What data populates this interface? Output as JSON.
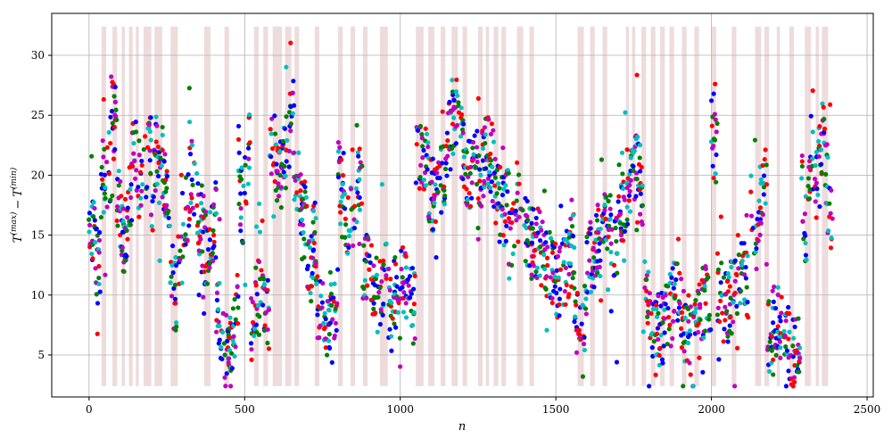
{
  "chart_data": {
    "type": "scatter",
    "xlabel": "n",
    "ylabel_main": "T",
    "ylabel_sup1": "(max)",
    "ylabel_minus": "−",
    "ylabel_sup2": "(min)",
    "xlim": [
      -120,
      2520
    ],
    "ylim": [
      1.5,
      33.5
    ],
    "xticks": [
      0,
      500,
      1000,
      1500,
      2000,
      2500
    ],
    "yticks": [
      5,
      10,
      15,
      20,
      25,
      30
    ],
    "grid": true,
    "series_colors": [
      "#0000ff",
      "#ff0000",
      "#008000",
      "#00bfbf",
      "#bf00bf"
    ],
    "band_color": "#e8d0d2",
    "band_range": [
      2.4,
      32.4
    ],
    "bands": [
      [
        40,
        55
      ],
      [
        75,
        90
      ],
      [
        105,
        115
      ],
      [
        128,
        140
      ],
      [
        150,
        160
      ],
      [
        175,
        200
      ],
      [
        210,
        235
      ],
      [
        262,
        285
      ],
      [
        370,
        390
      ],
      [
        435,
        450
      ],
      [
        530,
        545
      ],
      [
        560,
        575
      ],
      [
        590,
        620
      ],
      [
        630,
        650
      ],
      [
        660,
        675
      ],
      [
        725,
        740
      ],
      [
        800,
        815
      ],
      [
        840,
        855
      ],
      [
        880,
        895
      ],
      [
        935,
        960
      ],
      [
        1050,
        1075
      ],
      [
        1090,
        1110
      ],
      [
        1130,
        1145
      ],
      [
        1165,
        1185
      ],
      [
        1200,
        1215
      ],
      [
        1250,
        1265
      ],
      [
        1275,
        1285
      ],
      [
        1300,
        1315
      ],
      [
        1325,
        1340
      ],
      [
        1375,
        1395
      ],
      [
        1415,
        1430
      ],
      [
        1570,
        1590
      ],
      [
        1610,
        1625
      ],
      [
        1650,
        1665
      ],
      [
        1725,
        1735
      ],
      [
        1745,
        1755
      ],
      [
        1775,
        1790
      ],
      [
        1805,
        1820
      ],
      [
        1835,
        1850
      ],
      [
        1865,
        1880
      ],
      [
        1905,
        1920
      ],
      [
        1945,
        1960
      ],
      [
        2000,
        2015
      ],
      [
        2065,
        2080
      ],
      [
        2140,
        2160
      ],
      [
        2170,
        2185
      ],
      [
        2210,
        2220
      ],
      [
        2250,
        2265
      ],
      [
        2300,
        2320
      ],
      [
        2335,
        2345
      ],
      [
        2355,
        2375
      ]
    ],
    "segments": [
      {
        "x": [
          0,
          40
        ],
        "y": [
          12,
          16
        ]
      },
      {
        "x": [
          40,
          70
        ],
        "y": [
          19,
          21
        ]
      },
      {
        "x": [
          70,
          90
        ],
        "y": [
          24,
          28
        ]
      },
      {
        "x": [
          90,
          140
        ],
        "y": [
          15,
          19
        ]
      },
      {
        "x": [
          140,
          200
        ],
        "y": [
          19,
          23
        ]
      },
      {
        "x": [
          200,
          260
        ],
        "y": [
          17,
          23
        ]
      },
      {
        "x": [
          260,
          300
        ],
        "y": [
          10,
          14
        ]
      },
      {
        "x": [
          300,
          360
        ],
        "y": [
          15,
          20
        ]
      },
      {
        "x": [
          360,
          410
        ],
        "y": [
          13,
          17
        ]
      },
      {
        "x": [
          410,
          480
        ],
        "y": [
          5,
          9
        ]
      },
      {
        "x": [
          480,
          520
        ],
        "y": [
          17,
          22
        ]
      },
      {
        "x": [
          520,
          580
        ],
        "y": [
          8,
          11
        ]
      },
      {
        "x": [
          580,
          660
        ],
        "y": [
          20,
          25
        ]
      },
      {
        "x": [
          660,
          700
        ],
        "y": [
          16,
          20
        ]
      },
      {
        "x": [
          700,
          730
        ],
        "y": [
          12,
          15
        ]
      },
      {
        "x": [
          730,
          800
        ],
        "y": [
          7,
          9
        ]
      },
      {
        "x": [
          800,
          880
        ],
        "y": [
          16,
          20
        ]
      },
      {
        "x": [
          880,
          960
        ],
        "y": [
          10,
          13
        ]
      },
      {
        "x": [
          960,
          1050
        ],
        "y": [
          9,
          11
        ]
      },
      {
        "x": [
          1050,
          1150
        ],
        "y": [
          18,
          22
        ]
      },
      {
        "x": [
          1150,
          1250
        ],
        "y": [
          20,
          25
        ]
      },
      {
        "x": [
          1250,
          1350
        ],
        "y": [
          17,
          22
        ]
      },
      {
        "x": [
          1350,
          1440
        ],
        "y": [
          14,
          17
        ]
      },
      {
        "x": [
          1440,
          1560
        ],
        "y": [
          11,
          14
        ]
      },
      {
        "x": [
          1560,
          1600
        ],
        "y": [
          6,
          9
        ]
      },
      {
        "x": [
          1600,
          1700
        ],
        "y": [
          13,
          16
        ]
      },
      {
        "x": [
          1700,
          1780
        ],
        "y": [
          17,
          21
        ]
      },
      {
        "x": [
          1780,
          1900
        ],
        "y": [
          7,
          10
        ]
      },
      {
        "x": [
          1900,
          2000
        ],
        "y": [
          6,
          10
        ]
      },
      {
        "x": [
          2000,
          2020
        ],
        "y": [
          20,
          25
        ]
      },
      {
        "x": [
          2020,
          2120
        ],
        "y": [
          9,
          12
        ]
      },
      {
        "x": [
          2120,
          2180
        ],
        "y": [
          15,
          20
        ]
      },
      {
        "x": [
          2180,
          2290
        ],
        "y": [
          5,
          8
        ]
      },
      {
        "x": [
          2290,
          2330
        ],
        "y": [
          15,
          23
        ]
      },
      {
        "x": [
          2330,
          2390
        ],
        "y": [
          17,
          23
        ]
      }
    ],
    "spread": 4
  }
}
